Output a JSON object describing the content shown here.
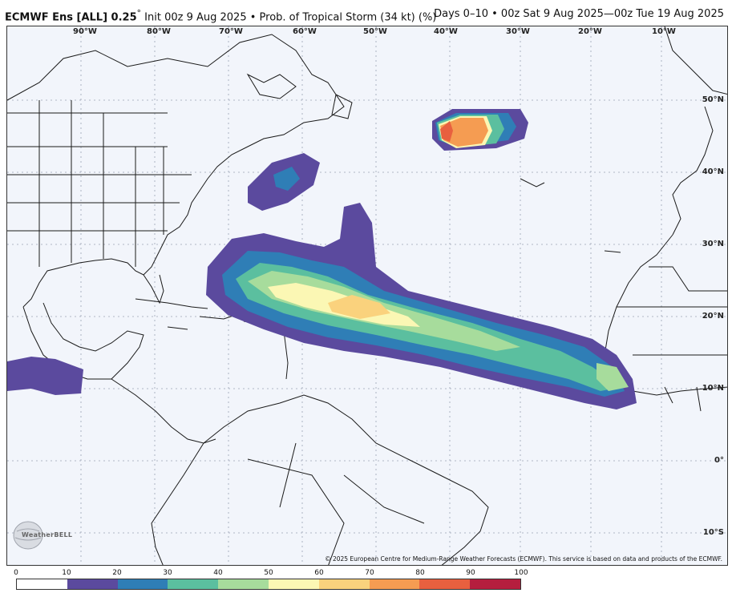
{
  "header": {
    "title_model": "ECMWF Ens [ALL] 0.25",
    "title_degree": "°",
    "title_rest": " Init 00z 9 Aug 2025 • Prob. of Tropical Storm (34 kt) (%)",
    "valid_range": "Days 0–10 • 00z Sat 9 Aug 2025—00z Tue 19 Aug 2025"
  },
  "map": {
    "lon_labels": [
      "90°W",
      "80°W",
      "70°W",
      "60°W",
      "50°W",
      "40°W",
      "30°W",
      "20°W",
      "10°W"
    ],
    "lat_labels": [
      "50°N",
      "40°N",
      "30°N",
      "20°N",
      "10°N",
      "0°",
      "10°S"
    ],
    "land_color": "#f2f5fb",
    "border_color": "#1a1a1a",
    "grid_color": "#9aa3b5"
  },
  "logo": {
    "text": "WeatherBELL"
  },
  "copyright": "© 2025 European Centre for Medium-Range Weather Forecasts (ECMWF). This service is based on data and products of the ECMWF.",
  "legend": {
    "ticks": [
      "0",
      "10",
      "20",
      "30",
      "40",
      "50",
      "60",
      "70",
      "80",
      "90",
      "100"
    ],
    "colors": [
      "#ffffff",
      "#5b4a9e",
      "#2f7eb6",
      "#5bbf9f",
      "#a7dc9c",
      "#fbf7b4",
      "#fad27d",
      "#f59c52",
      "#e8603f",
      "#b51e3e"
    ]
  }
}
